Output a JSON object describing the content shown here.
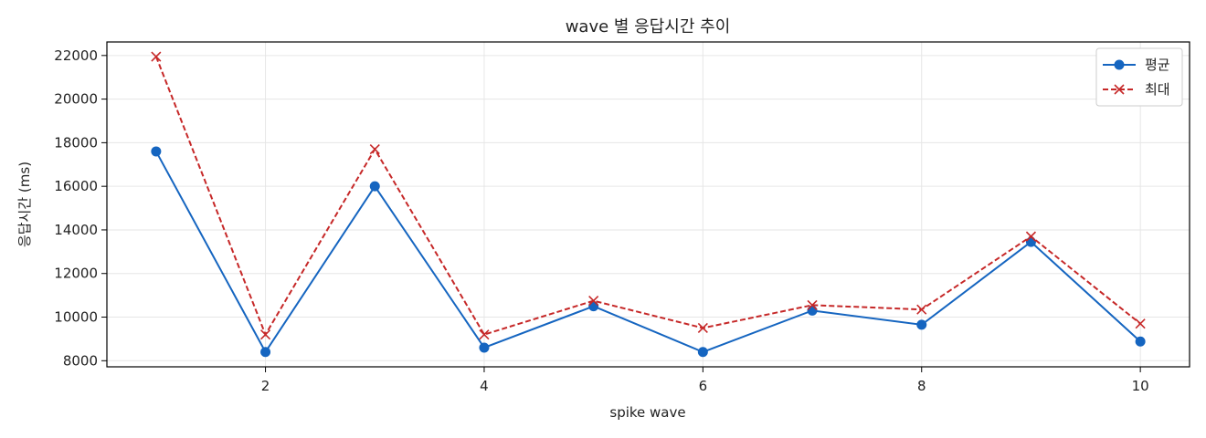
{
  "chart_data": {
    "type": "line",
    "title": "wave 별 응답시간 추이",
    "xlabel": "spike wave",
    "ylabel": "응답시간 (ms)",
    "x": [
      1,
      2,
      3,
      4,
      5,
      6,
      7,
      8,
      9,
      10
    ],
    "xticks": [
      2,
      4,
      6,
      8,
      10
    ],
    "yticks": [
      8000,
      10000,
      12000,
      14000,
      16000,
      18000,
      20000,
      22000
    ],
    "xlim": [
      0.55,
      10.45
    ],
    "ylim": [
      7720,
      22620
    ],
    "grid": true,
    "legend_position": "top-right",
    "series": [
      {
        "name": "평균",
        "color": "#1565c0",
        "line_style": "solid",
        "marker": "circle",
        "values": [
          17600,
          8400,
          16000,
          8600,
          10500,
          8400,
          10300,
          9650,
          13450,
          8880
        ]
      },
      {
        "name": "최대",
        "color": "#c62828",
        "line_style": "dashed",
        "marker": "x",
        "values": [
          21950,
          9200,
          17700,
          9200,
          10750,
          9500,
          10550,
          10350,
          13700,
          9700
        ]
      }
    ]
  }
}
